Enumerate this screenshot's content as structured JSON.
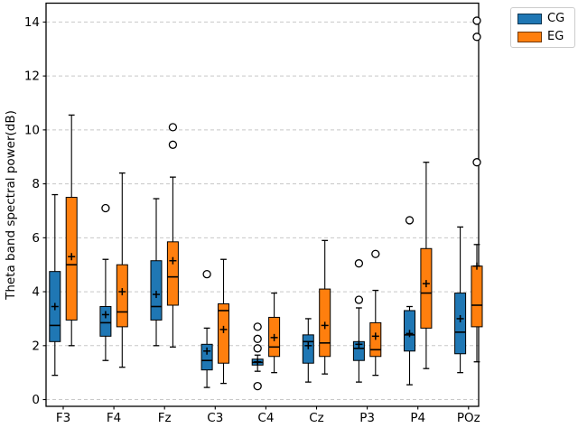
{
  "figure": {
    "background": "#ffffff"
  },
  "chart_data": {
    "type": "boxplot",
    "title": "",
    "xlabel": "",
    "ylabel": "Theta band spectral power(dB)",
    "categories": [
      "F3",
      "F4",
      "Fz",
      "C3",
      "C4",
      "Cz",
      "P3",
      "P4",
      "POz"
    ],
    "y_ticks": [
      0,
      2,
      4,
      6,
      8,
      10,
      12,
      14
    ],
    "ylim": [
      -0.25,
      14.7
    ],
    "grid": "horizontal-dashed",
    "grid_color": "#c8c8c8",
    "legend_position": "upper-right-outside",
    "mean_marker": "+",
    "outlier_marker": "circle-open",
    "series": [
      {
        "name": "CG",
        "color": "#1f77b4",
        "boxes": [
          {
            "category": "F3",
            "whislo": 0.9,
            "q1": 2.15,
            "med": 2.75,
            "q3": 4.75,
            "whishi": 7.6,
            "mean": 3.45,
            "fliers": []
          },
          {
            "category": "F4",
            "whislo": 1.45,
            "q1": 2.35,
            "med": 2.85,
            "q3": 3.45,
            "whishi": 5.2,
            "mean": 3.15,
            "fliers": [
              7.1
            ]
          },
          {
            "category": "Fz",
            "whislo": 2.0,
            "q1": 2.95,
            "med": 3.45,
            "q3": 5.15,
            "whishi": 7.45,
            "mean": 3.9,
            "fliers": []
          },
          {
            "category": "C3",
            "whislo": 0.45,
            "q1": 1.1,
            "med": 1.45,
            "q3": 2.05,
            "whishi": 2.65,
            "mean": 1.8,
            "fliers": [
              4.65
            ]
          },
          {
            "category": "C4",
            "whislo": 1.05,
            "q1": 1.28,
            "med": 1.38,
            "q3": 1.5,
            "whishi": 1.65,
            "mean": 1.4,
            "fliers": [
              0.5,
              1.9,
              2.25,
              2.7
            ]
          },
          {
            "category": "Cz",
            "whislo": 0.65,
            "q1": 1.35,
            "med": 2.15,
            "q3": 2.4,
            "whishi": 3.0,
            "mean": 2.0,
            "fliers": []
          },
          {
            "category": "P3",
            "whislo": 0.65,
            "q1": 1.45,
            "med": 1.9,
            "q3": 2.15,
            "whishi": 3.4,
            "mean": 2.05,
            "fliers": [
              3.7,
              5.05
            ]
          },
          {
            "category": "P4",
            "whislo": 0.55,
            "q1": 1.8,
            "med": 2.4,
            "q3": 3.3,
            "whishi": 3.45,
            "mean": 2.45,
            "fliers": [
              6.65
            ]
          },
          {
            "category": "POz",
            "whislo": 1.0,
            "q1": 1.7,
            "med": 2.5,
            "q3": 3.95,
            "whishi": 6.4,
            "mean": 3.0,
            "fliers": []
          }
        ]
      },
      {
        "name": "EG",
        "color": "#ff7f0e",
        "boxes": [
          {
            "category": "F3",
            "whislo": 2.0,
            "q1": 2.95,
            "med": 5.0,
            "q3": 7.5,
            "whishi": 10.55,
            "mean": 5.3,
            "fliers": []
          },
          {
            "category": "F4",
            "whislo": 1.2,
            "q1": 2.7,
            "med": 3.25,
            "q3": 5.0,
            "whishi": 8.4,
            "mean": 4.0,
            "fliers": []
          },
          {
            "category": "Fz",
            "whislo": 1.95,
            "q1": 3.5,
            "med": 4.55,
            "q3": 5.85,
            "whishi": 8.25,
            "mean": 5.15,
            "fliers": [
              9.45,
              10.1
            ]
          },
          {
            "category": "C3",
            "whislo": 0.6,
            "q1": 1.35,
            "med": 3.3,
            "q3": 3.55,
            "whishi": 5.2,
            "mean": 2.6,
            "fliers": []
          },
          {
            "category": "C4",
            "whislo": 1.0,
            "q1": 1.6,
            "med": 1.95,
            "q3": 3.05,
            "whishi": 3.95,
            "mean": 2.3,
            "fliers": []
          },
          {
            "category": "Cz",
            "whislo": 0.95,
            "q1": 1.6,
            "med": 2.1,
            "q3": 4.1,
            "whishi": 5.9,
            "mean": 2.75,
            "fliers": []
          },
          {
            "category": "P3",
            "whislo": 0.9,
            "q1": 1.6,
            "med": 1.85,
            "q3": 2.85,
            "whishi": 4.05,
            "mean": 2.35,
            "fliers": [
              5.4
            ]
          },
          {
            "category": "P4",
            "whislo": 1.15,
            "q1": 2.65,
            "med": 3.95,
            "q3": 5.6,
            "whishi": 8.8,
            "mean": 4.3,
            "fliers": []
          },
          {
            "category": "POz",
            "whislo": 1.4,
            "q1": 2.7,
            "med": 3.5,
            "q3": 4.95,
            "whishi": 5.75,
            "mean": 4.95,
            "fliers": [
              8.8,
              13.45,
              14.05
            ]
          }
        ]
      }
    ]
  }
}
